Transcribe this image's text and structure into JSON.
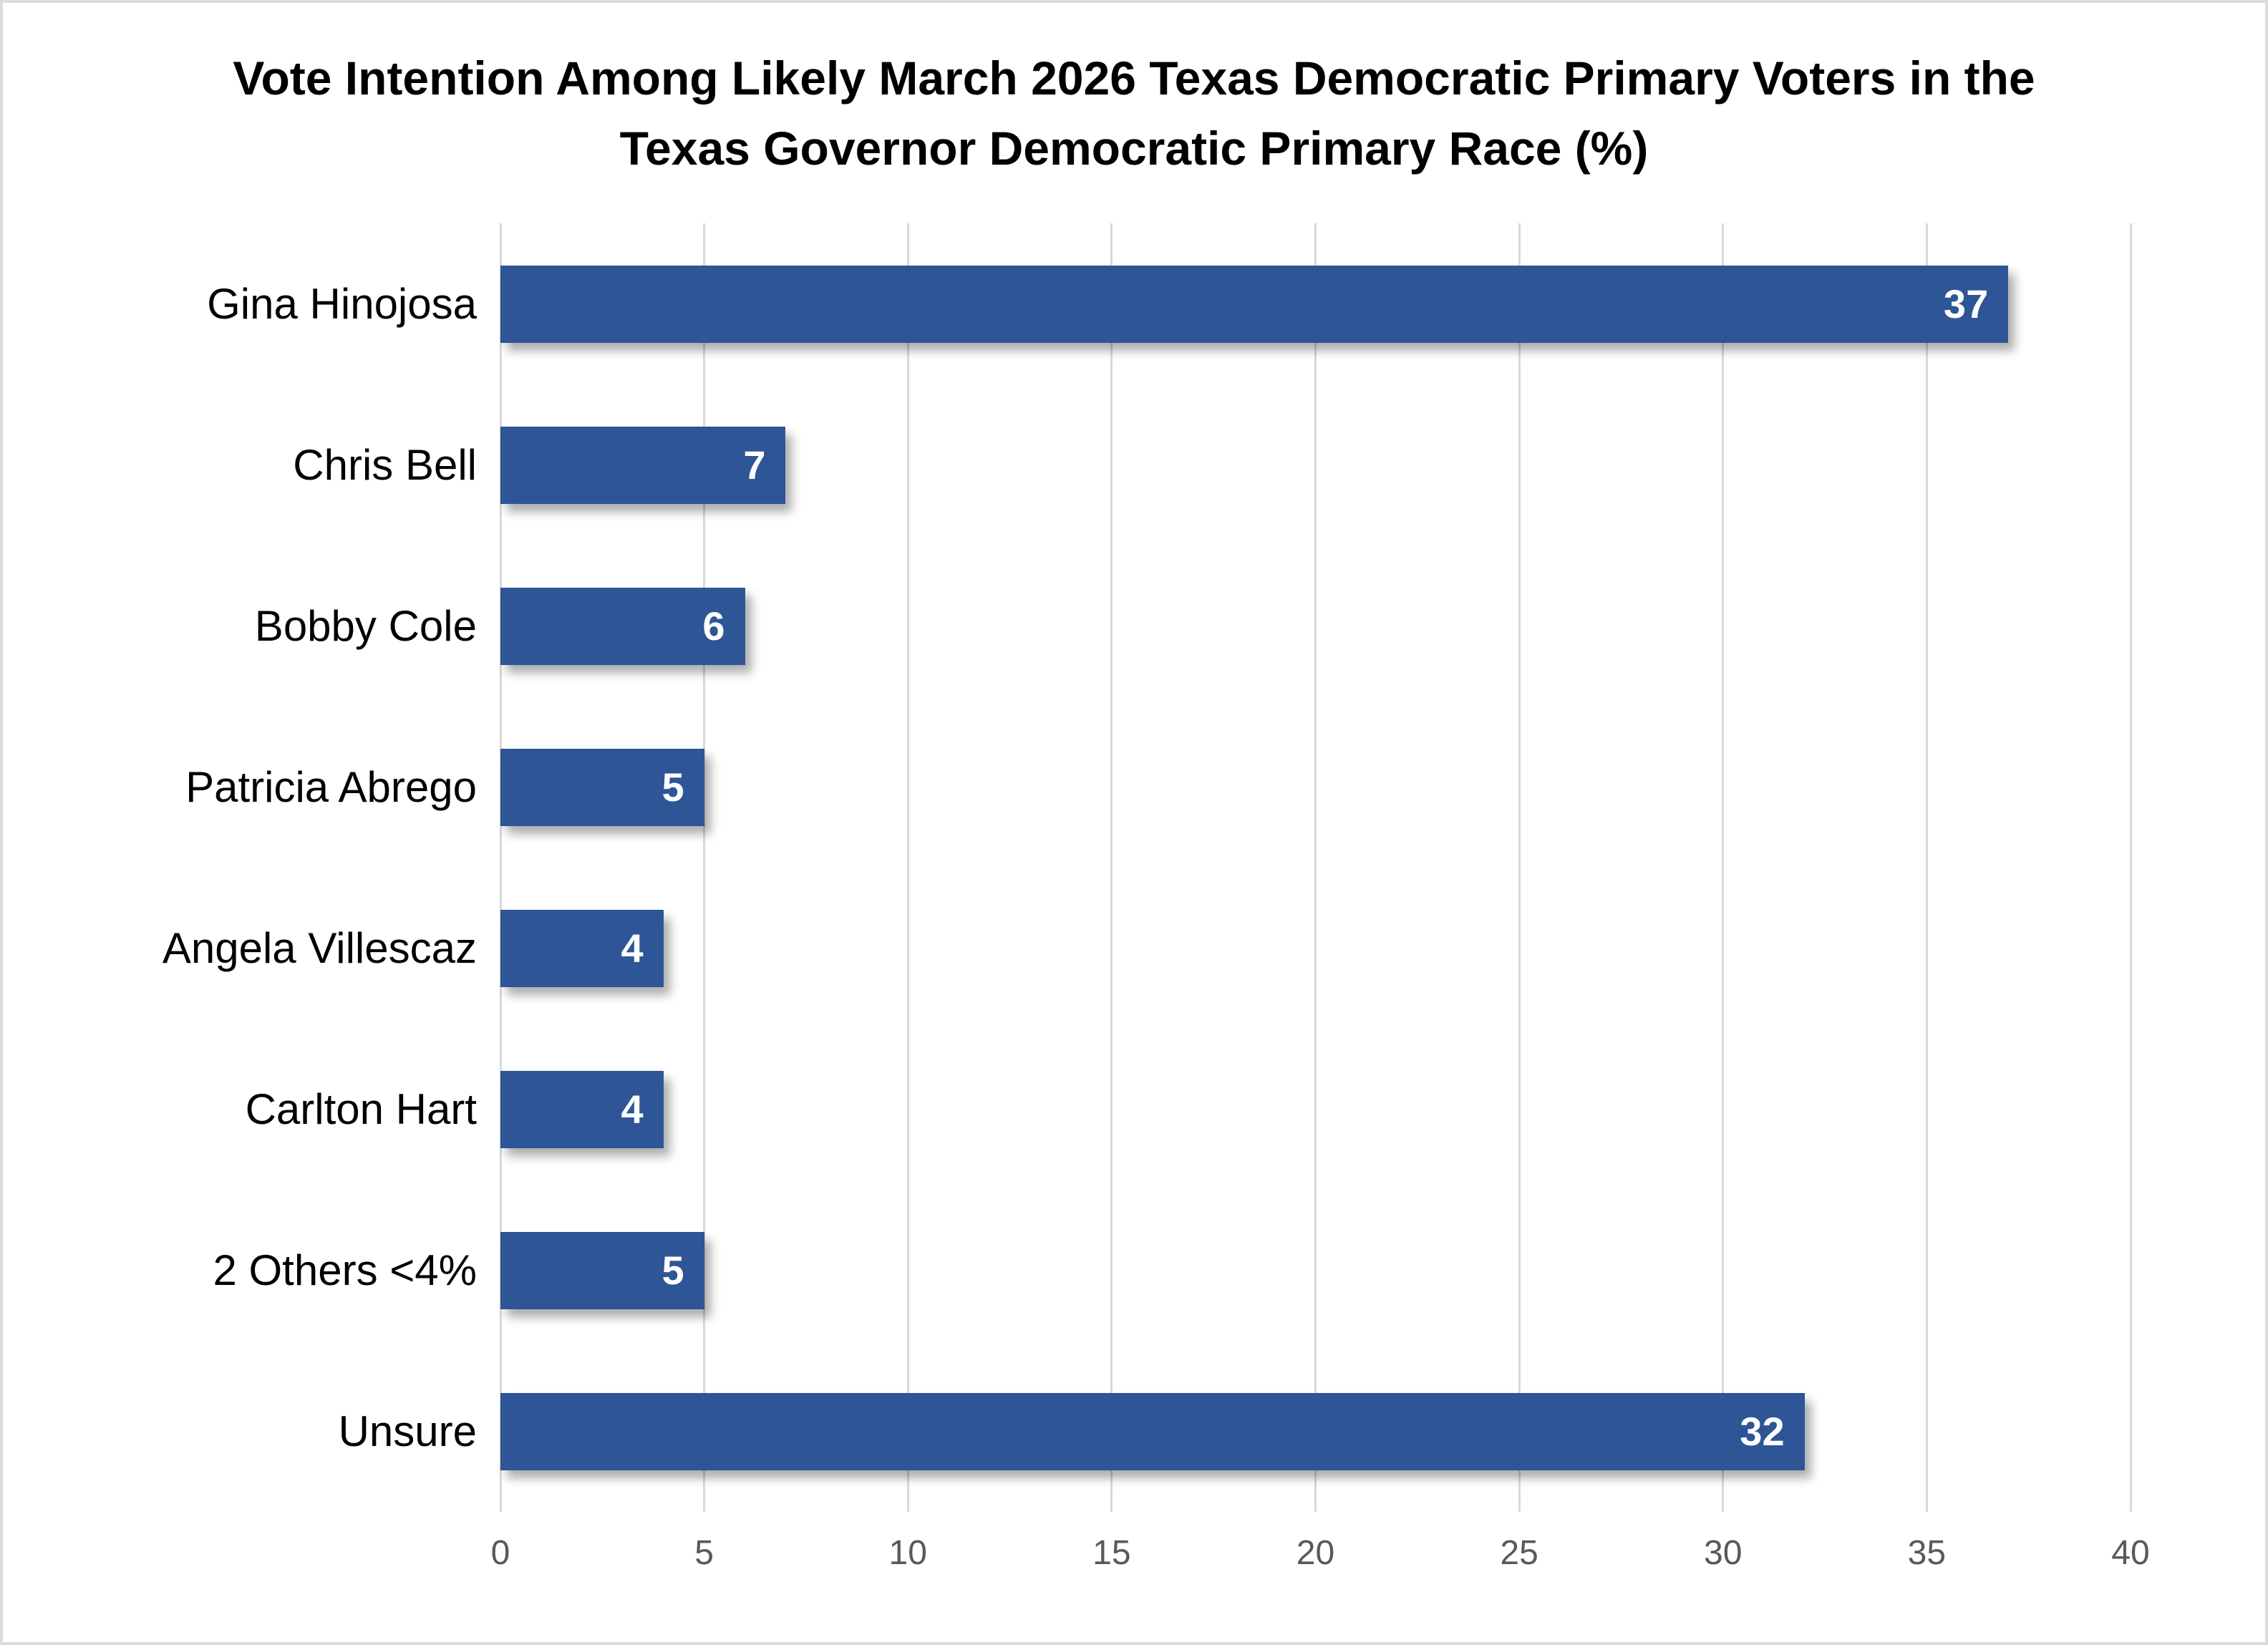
{
  "window": {
    "background": "#FFFFFF",
    "frame_border_color": "#DBDBDB"
  },
  "chart_data": {
    "type": "bar",
    "orientation": "horizontal",
    "title": "Vote Intention Among Likely March 2026 Texas Democratic Primary Voters in the Texas Governor Democratic Primary Race (%)",
    "title_lines": [
      "Vote Intention Among Likely March 2026 Texas Democratic Primary Voters in the",
      "Texas Governor Democratic Primary Race (%)"
    ],
    "categories": [
      "Gina Hinojosa",
      "Chris Bell",
      "Bobby Cole",
      "Patricia Abrego",
      "Angela Villescaz",
      "Carlton Hart",
      "2 Others <4%",
      "Unsure"
    ],
    "values": [
      37,
      7,
      6,
      5,
      4,
      4,
      5,
      32
    ],
    "xlabel": "",
    "ylabel": "",
    "xlim": [
      0,
      40
    ],
    "xticks": [
      0,
      5,
      10,
      15,
      20,
      25,
      30,
      35,
      40
    ],
    "grid": true,
    "legend": false,
    "bar_color": "#2E5596",
    "value_label_color": "#FFFFFF",
    "category_label_color": "#000000",
    "tick_label_color": "#595959",
    "gridline_color": "#D9D9D9"
  }
}
